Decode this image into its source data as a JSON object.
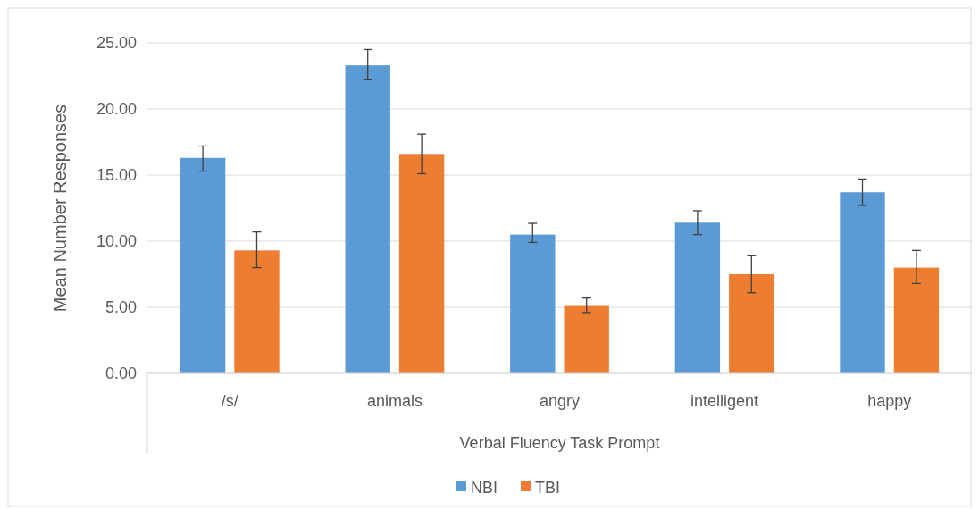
{
  "chart_data": {
    "type": "bar",
    "xlabel": "Verbal Fluency Task Prompt",
    "ylabel": "Mean Number  Responses",
    "categories": [
      "/s/",
      "animals",
      "angry",
      "intelligent",
      "happy"
    ],
    "series": [
      {
        "name": "NBI",
        "color": "#5b9bd5",
        "values": [
          16.3,
          23.3,
          10.5,
          11.4,
          13.7
        ],
        "errors": [
          [
            15.3,
            17.2
          ],
          [
            22.2,
            24.5
          ],
          [
            9.9,
            11.35
          ],
          [
            10.5,
            12.3
          ],
          [
            12.7,
            14.7
          ]
        ]
      },
      {
        "name": "TBI",
        "color": "#ed7d31",
        "values": [
          9.3,
          16.6,
          5.1,
          7.5,
          8.0
        ],
        "errors": [
          [
            8.0,
            10.7
          ],
          [
            15.1,
            18.1
          ],
          [
            4.6,
            5.7
          ],
          [
            6.1,
            8.9
          ],
          [
            6.8,
            9.3
          ]
        ]
      }
    ],
    "ylim": [
      0,
      25
    ],
    "yticks": [
      {
        "value": 0,
        "label": "0.00"
      },
      {
        "value": 5,
        "label": "5.00"
      },
      {
        "value": 10,
        "label": "10.00"
      },
      {
        "value": 15,
        "label": "15.00"
      },
      {
        "value": 20,
        "label": "20.00"
      },
      {
        "value": 25,
        "label": "25.00"
      }
    ],
    "grid": "y",
    "legend": "bottom"
  }
}
